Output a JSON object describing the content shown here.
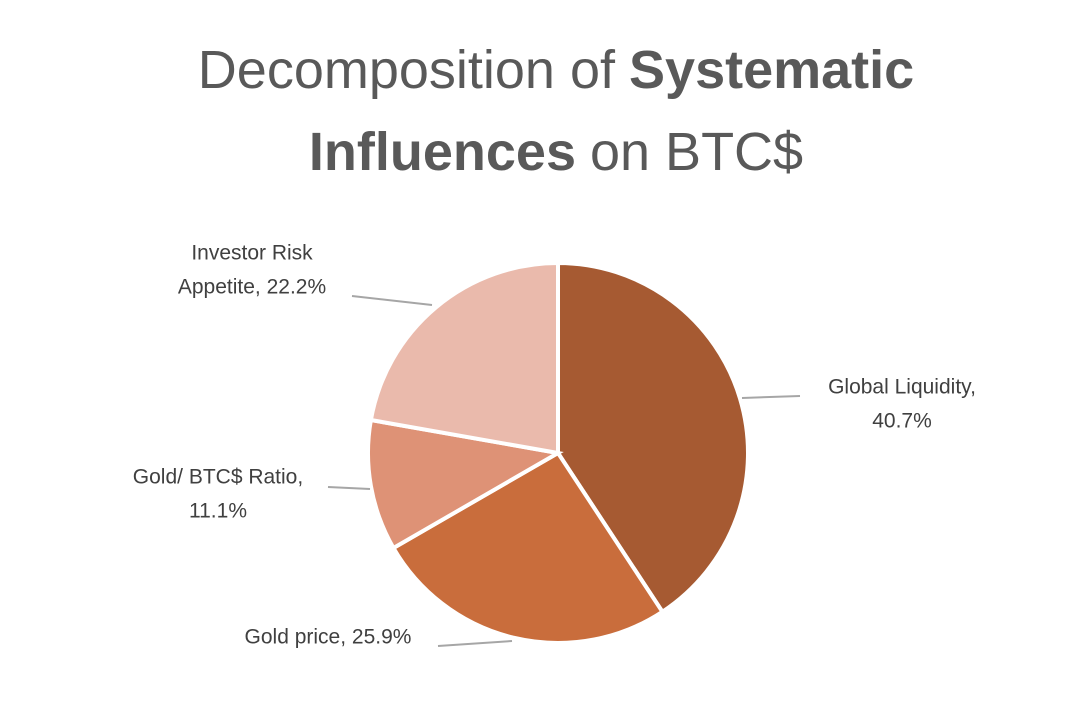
{
  "chart_data": {
    "type": "pie",
    "title_lines": [
      [
        {
          "text": "Decomposition of",
          "bold": false
        },
        {
          "text": "Systematic",
          "bold": true
        }
      ],
      [
        {
          "text": "Influences",
          "bold": true
        },
        {
          "text": "on BTC$",
          "bold": false
        }
      ]
    ],
    "values": [
      40.7,
      25.9,
      11.1,
      22.2
    ],
    "labels": [
      [
        "Global Liquidity,",
        "40.7%"
      ],
      [
        "Gold price, 25.9%"
      ],
      [
        "Gold/ BTC$ Ratio,",
        "11.1%"
      ],
      [
        "Investor Risk",
        "Appetite, 22.2%"
      ]
    ],
    "colors": [
      "#a65a32",
      "#c96d3c",
      "#de9276",
      "#eabaac"
    ]
  }
}
